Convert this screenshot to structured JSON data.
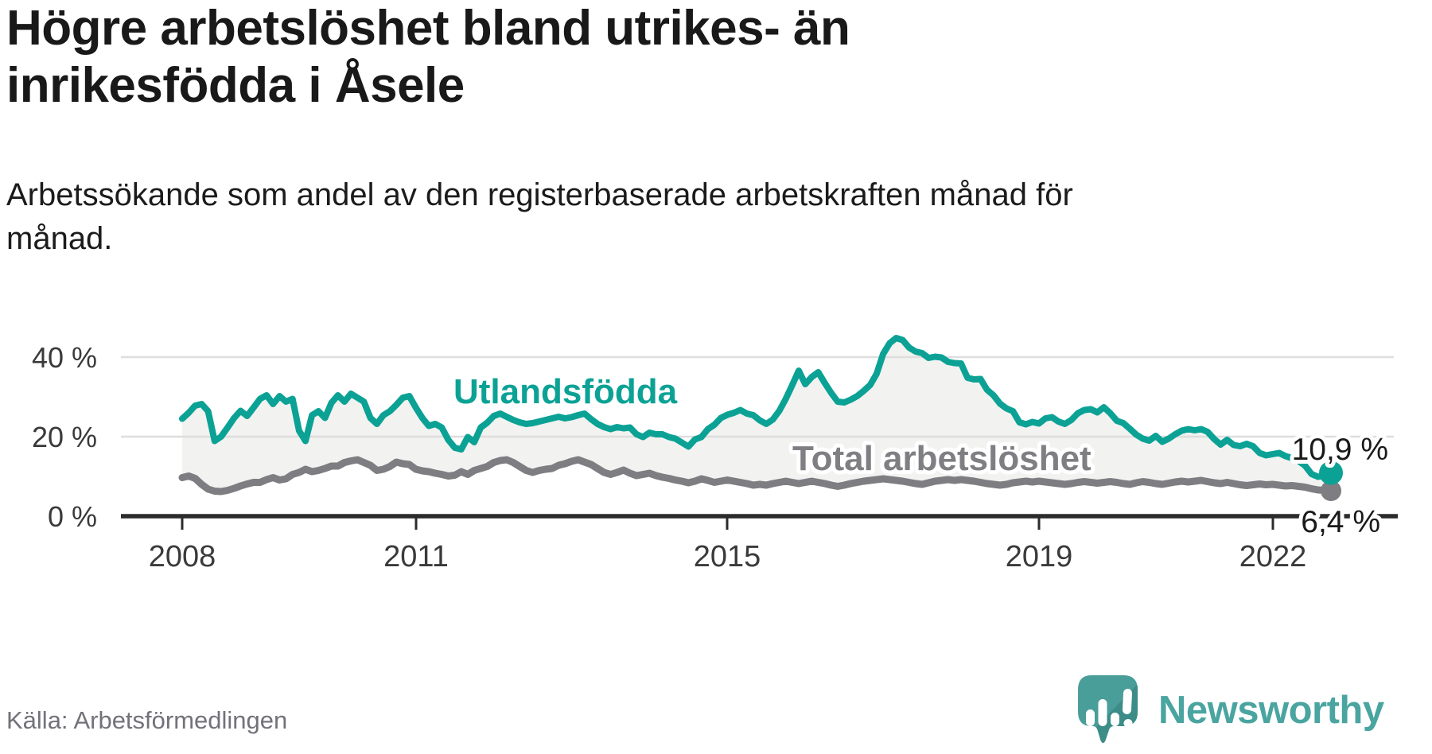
{
  "header": {
    "title": "Högre arbetslöshet bland utrikes- än inrikesfödda i Åsele",
    "subtitle": "Arbetssökande som andel av den registerbaserade arbetskraften månad för månad."
  },
  "chart_data": {
    "type": "line",
    "title": "Högre arbetslöshet bland utrikes- än inrikesfödda i Åsele",
    "x_start": "2008-01",
    "x_end": "2022-10",
    "x_interval": "monthly",
    "x_ticks": [
      "2008",
      "2011",
      "2015",
      "2019",
      "2022"
    ],
    "y_tick_labels": [
      "0 %",
      "20 %",
      "40 %"
    ],
    "y_gridlines_pct": [
      20,
      40
    ],
    "ylim": [
      0,
      47
    ],
    "grid": true,
    "legend_position": "inline-labels",
    "band_fill_color": "#f2f2f1",
    "series": [
      {
        "name": "Utlandsfödda",
        "color": "#0ba295",
        "end_label": "10,9 %",
        "end_value": 10.9,
        "values": [
          24.5,
          26.0,
          27.8,
          28.2,
          26.4,
          18.9,
          20.0,
          22.3,
          24.7,
          26.5,
          25.2,
          27.3,
          29.5,
          30.4,
          28.2,
          30.2,
          28.8,
          29.5,
          21.5,
          18.9,
          25.4,
          26.4,
          24.7,
          28.5,
          30.4,
          28.8,
          30.8,
          29.8,
          28.8,
          24.7,
          23.2,
          25.4,
          26.4,
          28.0,
          29.8,
          30.2,
          27.3,
          24.7,
          22.7,
          23.2,
          22.3,
          19.2,
          17.2,
          16.8,
          19.9,
          18.6,
          22.3,
          23.5,
          25.2,
          25.8,
          25.0,
          24.2,
          23.6,
          23.2,
          23.4,
          23.8,
          24.2,
          24.6,
          25.0,
          24.6,
          24.9,
          25.4,
          25.8,
          24.4,
          23.2,
          22.4,
          21.9,
          22.4,
          22.1,
          22.3,
          20.6,
          19.9,
          21.0,
          20.6,
          20.6,
          19.9,
          19.5,
          18.5,
          17.5,
          19.3,
          19.9,
          21.9,
          23.0,
          24.7,
          25.5,
          26.0,
          26.7,
          25.8,
          25.4,
          24.1,
          23.2,
          24.3,
          26.5,
          29.5,
          33.0,
          36.6,
          33.2,
          35.0,
          36.2,
          33.5,
          31.0,
          28.8,
          28.6,
          29.3,
          30.2,
          31.5,
          33.0,
          35.8,
          40.8,
          43.5,
          44.8,
          44.3,
          42.4,
          41.4,
          41.0,
          39.8,
          40.1,
          39.9,
          38.8,
          38.5,
          38.4,
          34.8,
          34.4,
          34.5,
          31.8,
          30.4,
          28.3,
          27.1,
          26.4,
          23.6,
          23.1,
          23.7,
          23.3,
          24.6,
          24.9,
          23.8,
          23.2,
          24.2,
          25.9,
          26.7,
          26.9,
          26.1,
          27.4,
          25.9,
          24.0,
          23.4,
          22.0,
          20.5,
          19.5,
          19.0,
          20.2,
          18.7,
          19.5,
          20.6,
          21.5,
          21.9,
          21.6,
          21.9,
          21.2,
          19.4,
          18.0,
          19.2,
          17.9,
          17.6,
          18.2,
          17.6,
          15.9,
          15.3,
          15.6,
          15.9,
          15.1,
          14.6,
          13.9,
          12.7,
          10.6,
          9.9,
          10.2,
          10.9
        ]
      },
      {
        "name": "Total arbetslöshet",
        "color": "#7e7e82",
        "label_color": "#7f7f83",
        "end_label": "6,4 %",
        "end_value": 6.4,
        "values": [
          9.7,
          10.1,
          9.5,
          8.0,
          6.8,
          6.3,
          6.2,
          6.5,
          7.0,
          7.6,
          8.1,
          8.5,
          8.5,
          9.2,
          9.7,
          9.1,
          9.4,
          10.5,
          11.0,
          11.8,
          11.2,
          11.5,
          12.0,
          12.6,
          12.6,
          13.5,
          13.9,
          14.2,
          13.5,
          12.8,
          11.5,
          11.8,
          12.5,
          13.6,
          13.2,
          13.0,
          11.8,
          11.4,
          11.2,
          10.8,
          10.5,
          10.1,
          10.3,
          11.2,
          10.5,
          11.5,
          12.0,
          12.5,
          13.5,
          14.0,
          14.2,
          13.5,
          12.5,
          11.5,
          11.0,
          11.5,
          11.8,
          12.0,
          12.8,
          13.2,
          13.8,
          14.2,
          13.6,
          13.0,
          12.0,
          11.0,
          10.5,
          11.0,
          11.6,
          10.8,
          10.2,
          10.5,
          10.8,
          10.2,
          9.8,
          9.5,
          9.1,
          8.8,
          8.4,
          8.8,
          9.4,
          9.0,
          8.5,
          8.8,
          9.1,
          8.8,
          8.5,
          8.2,
          7.8,
          8.0,
          7.8,
          8.2,
          8.5,
          8.8,
          8.5,
          8.2,
          8.5,
          8.8,
          8.5,
          8.2,
          7.8,
          7.5,
          7.8,
          8.2,
          8.5,
          8.8,
          9.0,
          9.2,
          9.4,
          9.2,
          9.0,
          8.8,
          8.5,
          8.2,
          8.0,
          8.4,
          8.8,
          9.0,
          9.2,
          9.0,
          9.2,
          9.0,
          8.8,
          8.5,
          8.2,
          8.0,
          7.8,
          8.0,
          8.4,
          8.6,
          8.8,
          8.6,
          8.8,
          8.6,
          8.4,
          8.2,
          8.0,
          8.2,
          8.5,
          8.7,
          8.5,
          8.3,
          8.5,
          8.7,
          8.5,
          8.2,
          8.0,
          8.4,
          8.7,
          8.5,
          8.2,
          8.0,
          8.3,
          8.6,
          8.8,
          8.6,
          8.8,
          9.0,
          8.7,
          8.4,
          8.2,
          8.5,
          8.2,
          7.9,
          7.7,
          7.9,
          8.1,
          7.9,
          8.0,
          7.8,
          7.6,
          7.7,
          7.5,
          7.3,
          6.9,
          6.6,
          6.5,
          6.4
        ]
      }
    ]
  },
  "footer": {
    "source": "Källa: Arbetsförmedlingen",
    "brand": "Newsworthy"
  },
  "colors": {
    "accent_teal": "#0ba295",
    "series_gray": "#7e7e82",
    "text": "#191919",
    "muted_text": "#72727a",
    "axis": "#2b2b2b",
    "grid": "#dedede",
    "band_fill": "#f2f2f1",
    "brand_teal": "#4aa4a0",
    "logo_bubble": "#4a9e99",
    "logo_bubble_dark": "#3c8c88"
  }
}
